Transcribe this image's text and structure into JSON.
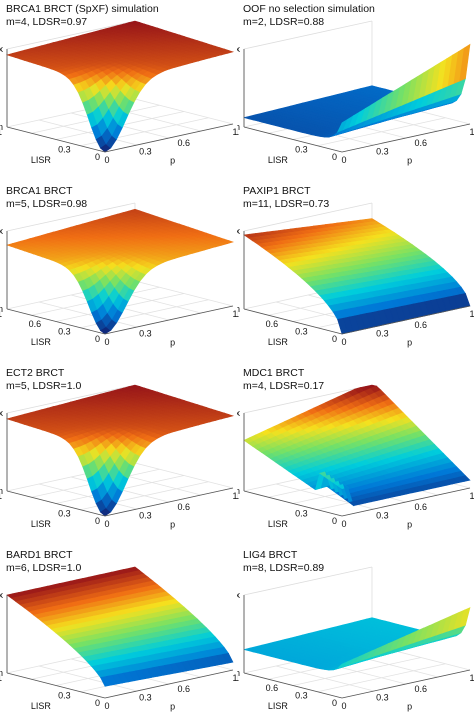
{
  "axis_text": {
    "max": "Max",
    "min": "Min",
    "lisr": "LISR",
    "p": "p"
  },
  "chart_data": [
    {
      "type": "surface",
      "title": "BRCA1 BRCT (SpXF) simulation",
      "subtitle": "m=4, LDSR=0.97",
      "xlabel": "p",
      "ylabel": "LISR",
      "zlabel": [
        "Min",
        "Max"
      ],
      "p_ticks": [
        "0",
        "0.3",
        "0.6",
        "1"
      ],
      "lisr_ticks": [
        "0",
        "0.3",
        "1"
      ],
      "surface": {
        "corner_p0_lisr0": 0.0,
        "corner_p1_lisr0": 0.92,
        "corner_p0_lisr1": 0.95,
        "corner_p1_lisr1": 1.0,
        "shape": "sharp dip near p=0, LISR=0"
      }
    },
    {
      "type": "surface",
      "title": "OOF no selection simulation",
      "subtitle": "m=2, LDSR=0.88",
      "xlabel": "p",
      "ylabel": "LISR",
      "zlabel": [
        "Min",
        "Max"
      ],
      "p_ticks": [
        "0",
        "0.3",
        "0.6",
        "1"
      ],
      "lisr_ticks": [
        "0",
        "0.3",
        "1"
      ],
      "surface": {
        "corner_p0_lisr0": 0.0,
        "corner_p1_lisr0": 0.6,
        "corner_p0_lisr1": 0.15,
        "corner_p1_lisr1": 0.75,
        "shape": "flat low plateau, steep rise at LISR=0"
      }
    },
    {
      "type": "surface",
      "title": "BRCA1 BRCT",
      "subtitle": "m=5, LDSR=0.98",
      "xlabel": "p",
      "ylabel": "LISR",
      "zlabel": [
        "Min",
        "Max"
      ],
      "p_ticks": [
        "0",
        "0.3",
        "1"
      ],
      "lisr_ticks": [
        "0",
        "0.3",
        "0.6",
        "1"
      ],
      "surface": {
        "corner_p0_lisr0": 0.0,
        "corner_p1_lisr0": 0.85,
        "corner_p0_lisr1": 0.9,
        "corner_p1_lisr1": 1.0,
        "shape": "dip near p=0, LISR=0"
      }
    },
    {
      "type": "surface",
      "title": "PAXIP1 BRCT",
      "subtitle": "m=11, LDSR=0.73",
      "xlabel": "p",
      "ylabel": "LISR",
      "zlabel": [
        "Min",
        "Max"
      ],
      "p_ticks": [
        "0",
        "0.3",
        "0.6",
        "1"
      ],
      "lisr_ticks": [
        "0",
        "0.3",
        "0.6",
        "1"
      ],
      "surface": {
        "corner_p0_lisr0": 0.0,
        "corner_p1_lisr0": 0.1,
        "corner_p0_lisr1": 0.9,
        "corner_p1_lisr1": 0.95,
        "shape": "ramp rising with LISR"
      }
    },
    {
      "type": "surface",
      "title": "ECT2 BRCT",
      "subtitle": "m=5, LDSR=1.0",
      "xlabel": "p",
      "ylabel": "LISR",
      "zlabel": [
        "Min",
        "Max"
      ],
      "p_ticks": [
        "0",
        "0.3",
        "0.6",
        "1"
      ],
      "lisr_ticks": [
        "0",
        "0.3",
        "1"
      ],
      "surface": {
        "corner_p0_lisr0": 0.0,
        "corner_p1_lisr0": 0.92,
        "corner_p0_lisr1": 0.95,
        "corner_p1_lisr1": 1.0,
        "shape": "sharp dip near p=0, LISR=0"
      }
    },
    {
      "type": "surface",
      "title": "MDC1 BRCT",
      "subtitle": "m=4, LDSR=0.17",
      "xlabel": "p",
      "ylabel": "LISR",
      "zlabel": [
        "Min",
        "Max"
      ],
      "p_ticks": [
        "0",
        "0.3",
        "0.6",
        "1"
      ],
      "lisr_ticks": [
        "0",
        "0.3",
        "1"
      ],
      "surface": {
        "corner_p0_lisr0": 0.05,
        "corner_p1_lisr0": 0.1,
        "corner_p0_lisr1": 0.75,
        "corner_p1_lisr1": 1.0,
        "shape": "rises toward high p and LISR, spike near p=0"
      }
    },
    {
      "type": "surface",
      "title": "BARD1 BRCT",
      "subtitle": "m=6, LDSR=1.0",
      "xlabel": "p",
      "ylabel": "LISR",
      "zlabel": [
        "Min",
        "Max"
      ],
      "p_ticks": [
        "0",
        "0.3",
        "0.6",
        "1"
      ],
      "lisr_ticks": [
        "0",
        "0.3",
        "1"
      ],
      "surface": {
        "corner_p0_lisr0": 0.0,
        "corner_p1_lisr0": 0.45,
        "corner_p0_lisr1": 1.0,
        "corner_p1_lisr1": 0.95,
        "shape": "high ridge at LISR=1, slope down to LISR=0"
      }
    },
    {
      "type": "surface",
      "title": "LIG4 BRCT",
      "subtitle": "m=8, LDSR=0.89",
      "xlabel": "p",
      "ylabel": "LISR",
      "zlabel": [
        "Min",
        "Max"
      ],
      "p_ticks": [
        "0",
        "0.3",
        "0.6",
        "1"
      ],
      "lisr_ticks": [
        "0",
        "0.3",
        "0.6",
        "1"
      ],
      "surface": {
        "corner_p0_lisr0": 0.0,
        "corner_p1_lisr0": 0.55,
        "corner_p0_lisr1": 0.35,
        "corner_p1_lisr1": 0.4,
        "shape": "low plateau, rise at LISR=0"
      }
    }
  ]
}
